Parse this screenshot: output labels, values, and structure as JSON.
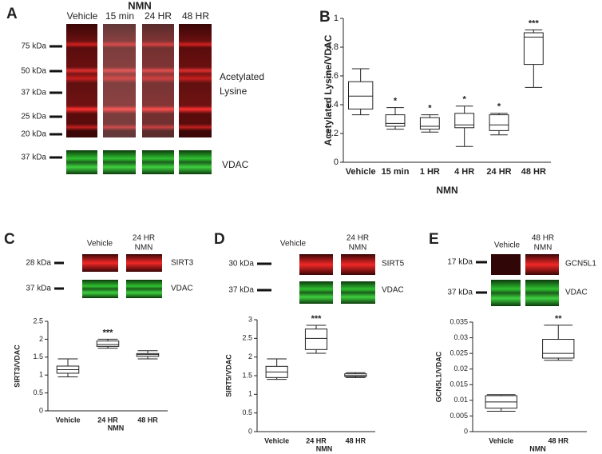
{
  "panel_labels": [
    "A",
    "B",
    "C",
    "D",
    "E"
  ],
  "blots": [
    {
      "title": "NMN",
      "lanes": [
        [
          "Vehicle"
        ],
        [
          "15 min"
        ],
        [
          "24 HR"
        ],
        [
          "48 HR"
        ]
      ],
      "markers": [
        "75 kDa",
        "50 kDa",
        "37 kDa",
        "25 kDa",
        "20 kDa",
        "37 kDa"
      ],
      "labels": [
        [
          "Acetylated",
          "Lysine"
        ],
        [
          "VDAC"
        ]
      ]
    },
    {
      "lanes": [
        [
          "Vehicle"
        ],
        [
          "24 HR",
          "NMN"
        ]
      ],
      "markers": [
        "28 kDa",
        "37 kDa"
      ],
      "labels": [
        [
          "SIRT3"
        ],
        [
          "VDAC"
        ]
      ]
    },
    {
      "lanes": [
        [
          "Vehicle"
        ],
        [
          "24 HR",
          "NMN"
        ]
      ],
      "markers": [
        "30 kDa",
        "37 kDa"
      ],
      "labels": [
        [
          "SIRT5"
        ],
        [
          "VDAC"
        ]
      ]
    },
    {
      "lanes": [
        [
          "Vehicle"
        ],
        [
          "48 HR",
          "NMN"
        ]
      ],
      "markers": [
        "17 kDa",
        "37 kDa"
      ],
      "labels": [
        [
          "GCN5L1"
        ],
        [
          "VDAC"
        ]
      ]
    }
  ],
  "chart_data": [
    {
      "type": "box",
      "ylabel": "Acetylated Lysine/VDAC",
      "xlabel": "NMN",
      "categories": [
        "Vehicle",
        "15 min",
        "1 HR",
        "4 HR",
        "24 HR",
        "48 HR"
      ],
      "values": [
        {
          "min": 0.33,
          "q1": 0.37,
          "median": 0.46,
          "q3": 0.56,
          "max": 0.65
        },
        {
          "min": 0.23,
          "q1": 0.25,
          "median": 0.27,
          "q3": 0.33,
          "max": 0.38
        },
        {
          "min": 0.21,
          "q1": 0.23,
          "median": 0.25,
          "q3": 0.31,
          "max": 0.33
        },
        {
          "min": 0.11,
          "q1": 0.24,
          "median": 0.26,
          "q3": 0.34,
          "max": 0.39
        },
        {
          "min": 0.19,
          "q1": 0.22,
          "median": 0.26,
          "q3": 0.33,
          "max": 0.34
        },
        {
          "min": 0.52,
          "q1": 0.68,
          "median": 0.87,
          "q3": 0.9,
          "max": 0.92
        }
      ],
      "annotations": [
        null,
        "*",
        "*",
        "*",
        "*",
        "***"
      ],
      "ylim": [
        0,
        1
      ],
      "yticks": [
        0,
        0.2,
        0.4,
        0.6,
        0.8,
        1
      ]
    },
    {
      "type": "box",
      "ylabel": "SIRT3/VDAC",
      "xlabel": "NMN",
      "categories": [
        "Vehicle",
        "24 HR",
        "48 HR"
      ],
      "values": [
        {
          "min": 0.95,
          "q1": 1.05,
          "median": 1.15,
          "q3": 1.25,
          "max": 1.45
        },
        {
          "min": 1.75,
          "q1": 1.8,
          "median": 1.85,
          "q3": 1.95,
          "max": 2.0
        },
        {
          "min": 1.45,
          "q1": 1.52,
          "median": 1.57,
          "q3": 1.6,
          "max": 1.68
        }
      ],
      "annotations": [
        null,
        "***",
        null
      ],
      "ylim": [
        0,
        2.5
      ],
      "yticks": [
        0,
        0.5,
        1,
        1.5,
        2,
        2.5
      ]
    },
    {
      "type": "box",
      "ylabel": "SIRT5/VDAC",
      "xlabel": "NMN",
      "categories": [
        "Vehicle",
        "24 HR",
        "48 HR"
      ],
      "values": [
        {
          "min": 1.4,
          "q1": 1.45,
          "median": 1.6,
          "q3": 1.75,
          "max": 1.95
        },
        {
          "min": 2.1,
          "q1": 2.2,
          "median": 2.5,
          "q3": 2.75,
          "max": 2.85
        },
        {
          "min": 1.45,
          "q1": 1.48,
          "median": 1.5,
          "q3": 1.55,
          "max": 1.58
        }
      ],
      "annotations": [
        null,
        "***",
        null
      ],
      "ylim": [
        0,
        3
      ],
      "yticks": [
        0,
        0.5,
        1,
        1.5,
        2,
        2.5,
        3
      ]
    },
    {
      "type": "box",
      "ylabel": "GCN5L1/VDAC",
      "xlabel": "NMN",
      "categories": [
        "Vehicle",
        "48 HR"
      ],
      "values": [
        {
          "min": 0.0065,
          "q1": 0.0075,
          "median": 0.0095,
          "q3": 0.0115,
          "max": 0.0118
        },
        {
          "min": 0.0228,
          "q1": 0.0235,
          "median": 0.025,
          "q3": 0.0295,
          "max": 0.034
        }
      ],
      "annotations": [
        null,
        "**"
      ],
      "ylim": [
        0,
        0.035
      ],
      "yticks": [
        0,
        0.005,
        0.01,
        0.015,
        0.02,
        0.025,
        0.03,
        0.035
      ]
    }
  ]
}
